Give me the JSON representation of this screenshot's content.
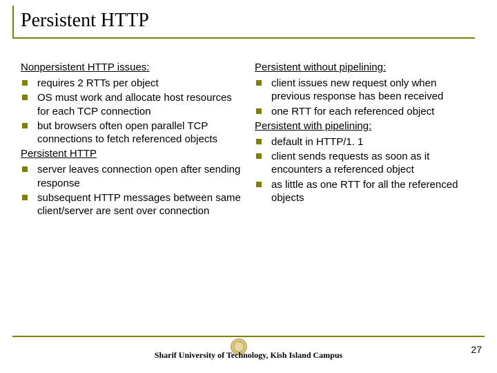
{
  "title": "Persistent HTTP",
  "left": {
    "h1": "Nonpersistent HTTP issues:",
    "b1": "requires 2 RTTs per object",
    "b2": "OS must work and allocate host resources for each TCP connection",
    "b3": "but browsers often open parallel TCP connections to fetch referenced objects",
    "h2": "Persistent  HTTP",
    "b4": "server leaves connection open after sending response",
    "b5": "subsequent HTTP messages between same client/server are sent over connection"
  },
  "right": {
    "h1": "Persistent without pipelining:",
    "b1": "client issues new request only when previous response has been received",
    "b2": "one RTT for each referenced object",
    "h2": "Persistent with pipelining:",
    "b3": "default in HTTP/1. 1",
    "b4": "client sends requests as soon as it encounters a referenced object",
    "b5": "as little as one RTT for all the referenced objects"
  },
  "footer": "Sharif University of Technology, Kish Island Campus",
  "page": "27",
  "colors": {
    "accent": "#808000",
    "text": "#000000",
    "bg": "#ffffff"
  }
}
